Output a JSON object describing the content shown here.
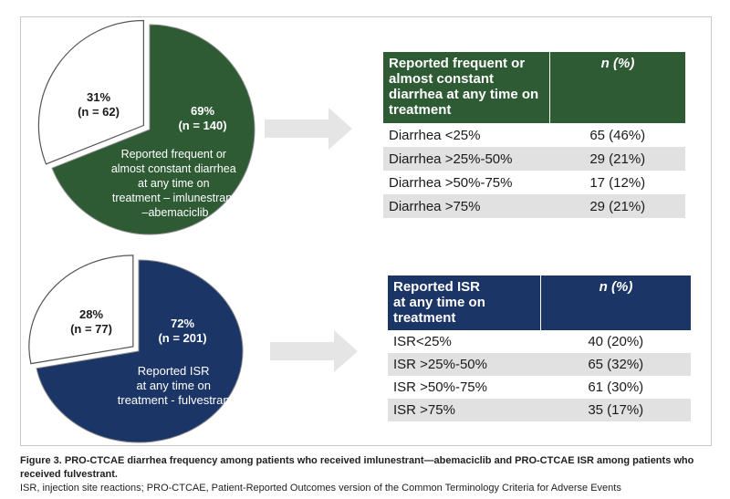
{
  "chart_data": [
    {
      "type": "pie",
      "title": "",
      "colors": [
        "#ffffff",
        "#2e5b34"
      ],
      "slices": [
        {
          "pct_label": "31%",
          "n_label": "(n = 62)",
          "value": 31,
          "text": ""
        },
        {
          "pct_label": "69%",
          "n_label": "(n = 140)",
          "value": 69,
          "text": "Reported frequent or almost constant diarrhea at any time on treatment – imlunestrant –abemaciclib",
          "text_lines": [
            "Reported frequent or",
            "almost constant diarrhea",
            "at any time on",
            "treatment – imlunestrant",
            "–abemaciclib"
          ]
        }
      ]
    },
    {
      "type": "table",
      "header_color": "#2e5b34",
      "header_label": "Reported frequent or almost constant diarrhea at any time on treatment",
      "header_lines": [
        "Reported frequent or",
        "almost constant",
        "diarrhea at any time on",
        "treatment"
      ],
      "value_header": "n (%)",
      "rows": [
        {
          "label": "Diarrhea <25%",
          "value": "65 (46%)"
        },
        {
          "label": "Diarrhea >25%-50%",
          "value": "29 (21%)"
        },
        {
          "label": "Diarrhea >50%-75%",
          "value": "17 (12%)"
        },
        {
          "label": "Diarrhea >75%",
          "value": "29 (21%)"
        }
      ]
    },
    {
      "type": "pie",
      "title": "",
      "colors": [
        "#ffffff",
        "#1b3566"
      ],
      "slices": [
        {
          "pct_label": "28%",
          "n_label": "(n = 77)",
          "value": 28,
          "text": ""
        },
        {
          "pct_label": "72%",
          "n_label": "(n = 201)",
          "value": 72,
          "text": "Reported ISR at any time on treatment - fulvestrant",
          "text_lines": [
            "Reported ISR",
            "at any time on",
            "treatment - fulvestrant"
          ]
        }
      ]
    },
    {
      "type": "table",
      "header_color": "#1b3566",
      "header_label": "Reported ISR at any time on treatment",
      "header_lines": [
        "Reported ISR",
        "at any time on",
        "treatment"
      ],
      "value_header": "n (%)",
      "rows": [
        {
          "label": "ISR<25%",
          "value": "40 (20%)"
        },
        {
          "label": "ISR >25%-50%",
          "value": "65 (32%)"
        },
        {
          "label": "ISR >50%-75%",
          "value": "61 (30%)"
        },
        {
          "label": "ISR >75%",
          "value": "35 (17%)"
        }
      ]
    }
  ],
  "caption": {
    "lead": "Figure 3.  PRO-CTCAE diarrhea frequency among patients who received imlunestrant—abemaciclib and PRO-CTCAE ISR among patients who received fulvestrant.",
    "footnote": "ISR, injection site reactions; PRO-CTCAE, Patient-Reported Outcomes version of the Common Terminology Criteria for Adverse Events"
  },
  "arrow_color": "#e5e5e5"
}
